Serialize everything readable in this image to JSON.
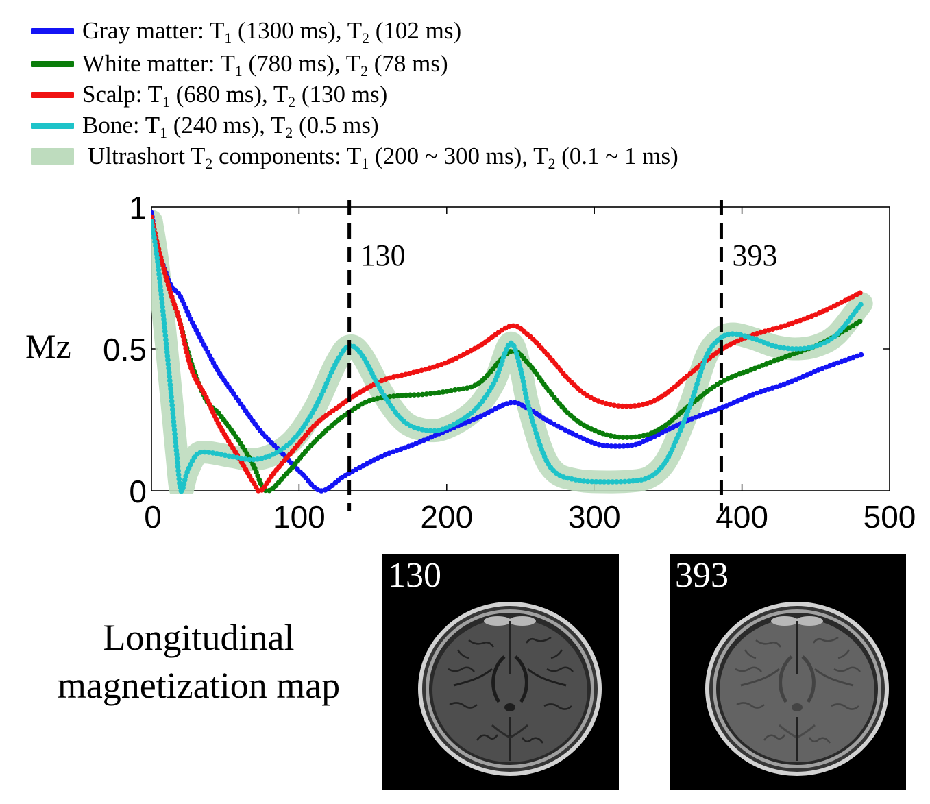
{
  "chart_data": {
    "type": "line",
    "title": "",
    "xlabel": "",
    "ylabel": "Mz",
    "xlim": [
      0,
      500
    ],
    "ylim": [
      0,
      1
    ],
    "xticks": [
      0,
      100,
      200,
      300,
      400,
      500
    ],
    "xtick_labels": [
      "0",
      "100",
      "200",
      "300",
      "400",
      "500"
    ],
    "yticks": [
      0,
      0.5,
      1
    ],
    "ytick_labels": [
      "0",
      "0.5",
      "1"
    ],
    "legend_position": "top",
    "series": [
      {
        "color": "#1414f5",
        "label_parts": [
          "Gray matter: T",
          "1",
          " (1300 ms), T",
          "2",
          " (102 ms)"
        ],
        "x": [
          0,
          4,
          9,
          13.5,
          19,
          27,
          37,
          46,
          60,
          74,
          88,
          102,
          115,
          130,
          143,
          157,
          176,
          199,
          222,
          243,
          255,
          269,
          292,
          306,
          325,
          338,
          362,
          385,
          408,
          431,
          454,
          481
        ],
        "y": [
          0.98,
          0.86,
          0.78,
          0.72,
          0.69,
          0.6,
          0.5,
          0.415,
          0.31,
          0.21,
          0.135,
          0.06,
          0.0,
          0.05,
          0.087,
          0.124,
          0.16,
          0.21,
          0.26,
          0.31,
          0.29,
          0.245,
          0.185,
          0.16,
          0.16,
          0.185,
          0.245,
          0.29,
          0.34,
          0.38,
          0.43,
          0.48
        ]
      },
      {
        "color": "#0a7d0a",
        "label_parts": [
          "White matter: T",
          "1",
          " (780 ms), T",
          "2",
          " (78 ms)"
        ],
        "x": [
          0,
          4,
          9,
          14,
          19,
          27,
          37,
          46,
          60,
          69,
          78,
          92,
          106,
          120,
          134,
          148,
          167,
          185,
          204,
          222,
          243,
          255,
          269,
          283,
          297,
          315,
          334,
          348,
          362,
          385,
          408,
          431,
          454,
          481
        ],
        "y": [
          0.965,
          0.87,
          0.77,
          0.68,
          0.6,
          0.45,
          0.32,
          0.27,
          0.17,
          0.09,
          0.0,
          0.063,
          0.148,
          0.22,
          0.277,
          0.318,
          0.335,
          0.34,
          0.354,
          0.38,
          0.49,
          0.45,
          0.354,
          0.27,
          0.22,
          0.19,
          0.195,
          0.23,
          0.29,
          0.38,
          0.43,
          0.475,
          0.52,
          0.6
        ]
      },
      {
        "color": "#f01212",
        "label_parts": [
          "Scalp: T",
          "1",
          " (680 ms), T",
          "2",
          " (130 ms)"
        ],
        "x": [
          0,
          4,
          9,
          14,
          19,
          27,
          37,
          46,
          60,
          69,
          74,
          83,
          97,
          111,
          125,
          139,
          157,
          176,
          199,
          222,
          243,
          255,
          269,
          283,
          297,
          315,
          334,
          348,
          362,
          376,
          390,
          408,
          431,
          454,
          481
        ],
        "y": [
          0.965,
          0.87,
          0.77,
          0.68,
          0.6,
          0.43,
          0.33,
          0.23,
          0.11,
          0.03,
          0.0,
          0.063,
          0.148,
          0.233,
          0.29,
          0.34,
          0.39,
          0.415,
          0.45,
          0.51,
          0.58,
          0.55,
          0.475,
          0.39,
          0.33,
          0.3,
          0.305,
          0.34,
          0.4,
          0.46,
          0.51,
          0.55,
          0.585,
          0.63,
          0.7
        ]
      },
      {
        "color": "#1ec3c9",
        "label_parts": [
          "Bone: T",
          "1",
          " (240 ms), T",
          "2",
          " (0.5 ms)"
        ],
        "x": [
          0,
          4,
          9,
          13.5,
          17,
          20,
          24,
          30,
          37,
          55,
          69,
          83,
          97,
          111,
          125,
          134,
          143,
          157,
          171,
          185,
          199,
          218,
          232,
          243,
          250,
          255,
          265,
          274,
          287,
          301,
          325,
          338,
          348,
          357,
          366,
          376,
          385,
          394,
          408,
          422,
          436,
          450,
          464,
          481
        ],
        "y": [
          0.95,
          0.815,
          0.57,
          0.33,
          0.136,
          0.0,
          0.063,
          0.124,
          0.136,
          0.12,
          0.11,
          0.13,
          0.185,
          0.294,
          0.45,
          0.51,
          0.475,
          0.34,
          0.245,
          0.214,
          0.22,
          0.28,
          0.38,
          0.52,
          0.43,
          0.305,
          0.136,
          0.063,
          0.039,
          0.032,
          0.034,
          0.05,
          0.1,
          0.197,
          0.318,
          0.475,
          0.536,
          0.553,
          0.536,
          0.51,
          0.5,
          0.51,
          0.55,
          0.66
        ]
      }
    ],
    "band": {
      "color": "#bedcbe",
      "label_parts": [
        "Ultrashort T",
        "2",
        " components: T",
        "1",
        " (200 ~ 300 ms), T",
        "2",
        " (0.1 ~ 1 ms)"
      ],
      "follows_series": 3,
      "spread_y": 0.04
    },
    "markers": [
      {
        "x": 134,
        "label": "130"
      },
      {
        "x": 386,
        "label": "393"
      }
    ]
  },
  "caption": {
    "line1": "Longitudinal",
    "line2": "magnetization map"
  },
  "maps": [
    {
      "label": "130"
    },
    {
      "label": "393"
    }
  ]
}
